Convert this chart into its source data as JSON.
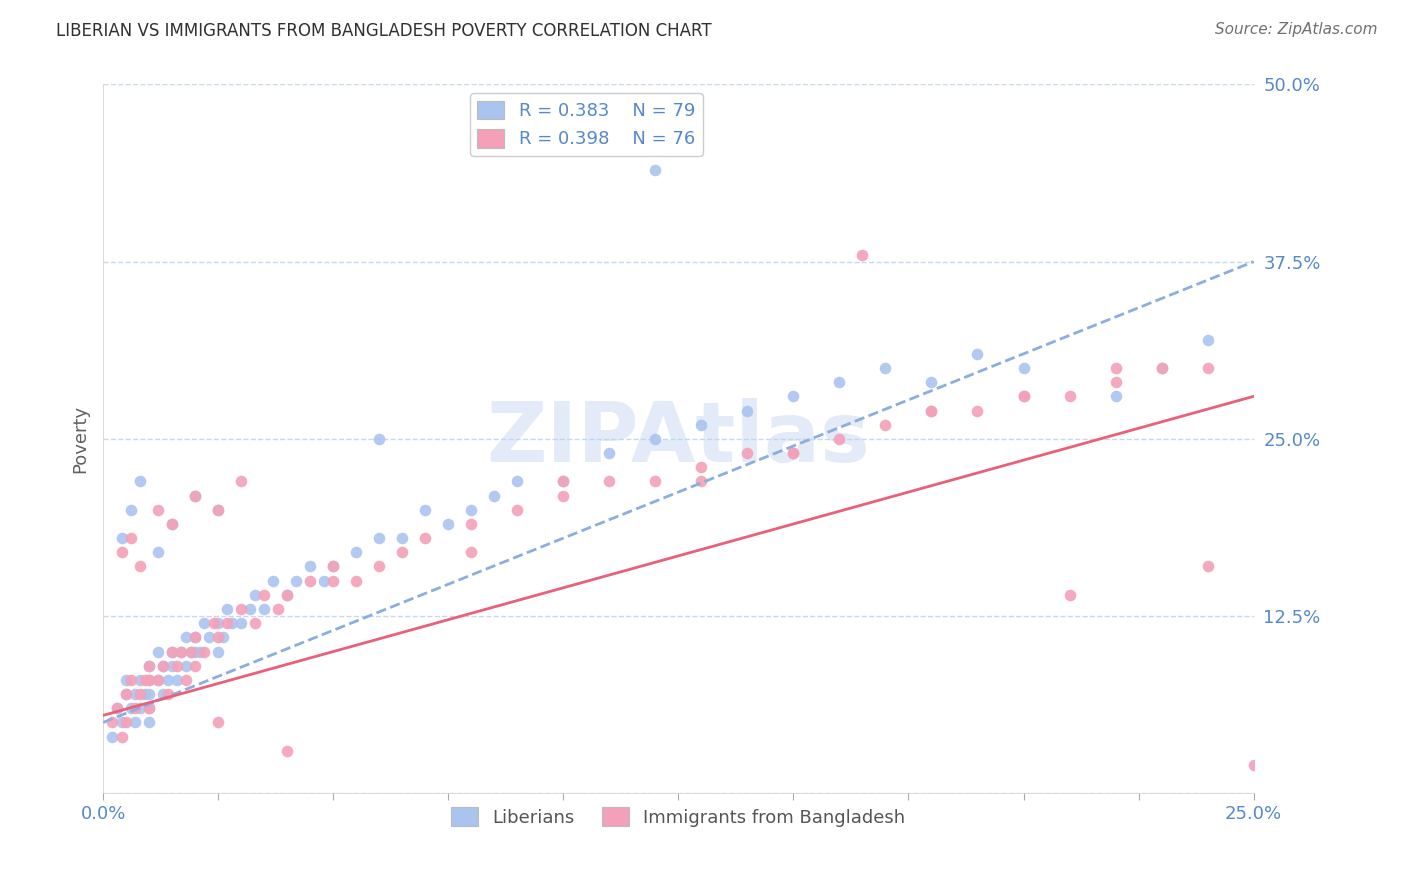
{
  "title": "LIBERIAN VS IMMIGRANTS FROM BANGLADESH POVERTY CORRELATION CHART",
  "source": "Source: ZipAtlas.com",
  "ylabel": "Poverty",
  "xlim": [
    0.0,
    0.25
  ],
  "ylim": [
    0.0,
    0.5
  ],
  "xticks": [
    0.0,
    0.025,
    0.05,
    0.075,
    0.1,
    0.125,
    0.15,
    0.175,
    0.2,
    0.225,
    0.25
  ],
  "xtick_labels": [
    "0.0%",
    "",
    "",
    "",
    "",
    "",
    "",
    "",
    "",
    "",
    "25.0%"
  ],
  "yticks": [
    0.0,
    0.125,
    0.25,
    0.375,
    0.5
  ],
  "ytick_labels": [
    "",
    "12.5%",
    "25.0%",
    "37.5%",
    "50.0%"
  ],
  "legend_blue_r": "R = 0.383",
  "legend_blue_n": "N = 79",
  "legend_pink_r": "R = 0.398",
  "legend_pink_n": "N = 76",
  "legend_label_blue": "Liberians",
  "legend_label_pink": "Immigrants from Bangladesh",
  "watermark": "ZIPAtlas",
  "blue_color": "#aac4f0",
  "blue_line_color": "#8aaee0",
  "pink_color": "#f4a0b8",
  "pink_line_color": "#e8607a",
  "axis_color": "#5588cc",
  "grid_color": "#c8d8ec",
  "title_color": "#303030",
  "blue_scatter_x": [
    0.002,
    0.003,
    0.004,
    0.005,
    0.005,
    0.006,
    0.007,
    0.007,
    0.008,
    0.008,
    0.009,
    0.01,
    0.01,
    0.01,
    0.01,
    0.01,
    0.012,
    0.012,
    0.013,
    0.013,
    0.014,
    0.015,
    0.015,
    0.016,
    0.017,
    0.018,
    0.018,
    0.019,
    0.02,
    0.02,
    0.021,
    0.022,
    0.023,
    0.025,
    0.025,
    0.026,
    0.027,
    0.028,
    0.03,
    0.032,
    0.033,
    0.035,
    0.037,
    0.04,
    0.042,
    0.045,
    0.048,
    0.05,
    0.055,
    0.06,
    0.065,
    0.07,
    0.075,
    0.08,
    0.085,
    0.09,
    0.1,
    0.11,
    0.12,
    0.13,
    0.14,
    0.15,
    0.16,
    0.17,
    0.18,
    0.19,
    0.2,
    0.22,
    0.23,
    0.24,
    0.004,
    0.006,
    0.008,
    0.012,
    0.015,
    0.02,
    0.025,
    0.06,
    0.12
  ],
  "blue_scatter_y": [
    0.04,
    0.06,
    0.05,
    0.07,
    0.08,
    0.06,
    0.05,
    0.07,
    0.08,
    0.06,
    0.07,
    0.07,
    0.06,
    0.08,
    0.09,
    0.05,
    0.08,
    0.1,
    0.09,
    0.07,
    0.08,
    0.09,
    0.1,
    0.08,
    0.1,
    0.09,
    0.11,
    0.1,
    0.1,
    0.11,
    0.1,
    0.12,
    0.11,
    0.1,
    0.12,
    0.11,
    0.13,
    0.12,
    0.12,
    0.13,
    0.14,
    0.13,
    0.15,
    0.14,
    0.15,
    0.16,
    0.15,
    0.16,
    0.17,
    0.18,
    0.18,
    0.2,
    0.19,
    0.2,
    0.21,
    0.22,
    0.22,
    0.24,
    0.25,
    0.26,
    0.27,
    0.28,
    0.29,
    0.3,
    0.29,
    0.31,
    0.3,
    0.28,
    0.3,
    0.32,
    0.18,
    0.2,
    0.22,
    0.17,
    0.19,
    0.21,
    0.2,
    0.25,
    0.44
  ],
  "pink_scatter_x": [
    0.002,
    0.003,
    0.004,
    0.005,
    0.005,
    0.006,
    0.007,
    0.008,
    0.009,
    0.01,
    0.01,
    0.01,
    0.012,
    0.013,
    0.014,
    0.015,
    0.016,
    0.017,
    0.018,
    0.019,
    0.02,
    0.02,
    0.022,
    0.024,
    0.025,
    0.027,
    0.03,
    0.033,
    0.035,
    0.038,
    0.04,
    0.045,
    0.05,
    0.055,
    0.06,
    0.065,
    0.07,
    0.08,
    0.09,
    0.1,
    0.11,
    0.12,
    0.13,
    0.14,
    0.15,
    0.16,
    0.17,
    0.18,
    0.19,
    0.2,
    0.21,
    0.22,
    0.23,
    0.24,
    0.004,
    0.006,
    0.008,
    0.012,
    0.015,
    0.02,
    0.025,
    0.03,
    0.05,
    0.08,
    0.1,
    0.13,
    0.15,
    0.18,
    0.2,
    0.22,
    0.165,
    0.21,
    0.24,
    0.25,
    0.025,
    0.04
  ],
  "pink_scatter_y": [
    0.05,
    0.06,
    0.04,
    0.07,
    0.05,
    0.08,
    0.06,
    0.07,
    0.08,
    0.06,
    0.08,
    0.09,
    0.08,
    0.09,
    0.07,
    0.1,
    0.09,
    0.1,
    0.08,
    0.1,
    0.09,
    0.11,
    0.1,
    0.12,
    0.11,
    0.12,
    0.13,
    0.12,
    0.14,
    0.13,
    0.14,
    0.15,
    0.16,
    0.15,
    0.16,
    0.17,
    0.18,
    0.19,
    0.2,
    0.21,
    0.22,
    0.22,
    0.23,
    0.24,
    0.24,
    0.25,
    0.26,
    0.27,
    0.27,
    0.28,
    0.28,
    0.29,
    0.3,
    0.3,
    0.17,
    0.18,
    0.16,
    0.2,
    0.19,
    0.21,
    0.2,
    0.22,
    0.15,
    0.17,
    0.22,
    0.22,
    0.24,
    0.27,
    0.28,
    0.3,
    0.38,
    0.14,
    0.16,
    0.02,
    0.05,
    0.03
  ],
  "blue_trend": [
    0.05,
    0.375
  ],
  "pink_trend": [
    0.055,
    0.28
  ]
}
